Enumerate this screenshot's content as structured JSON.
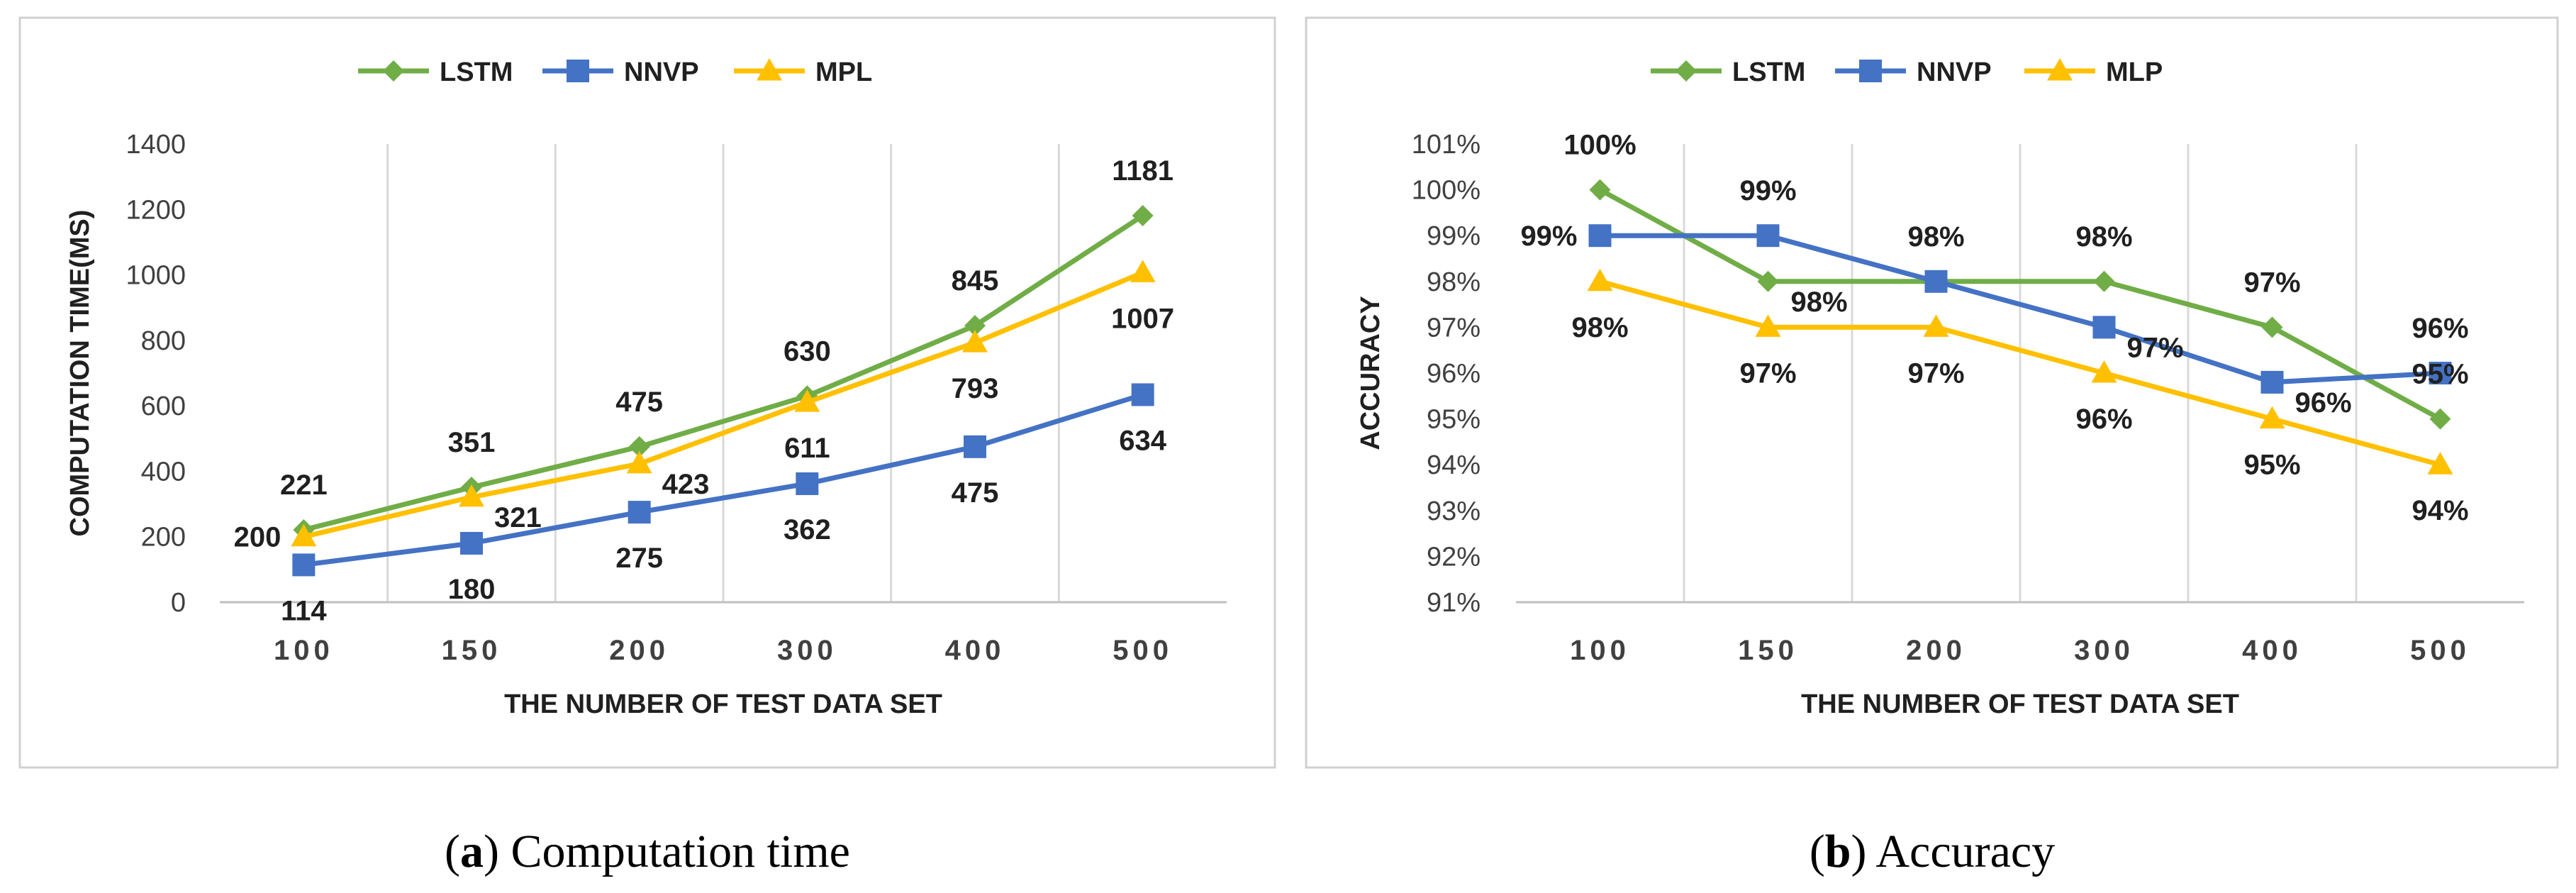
{
  "chart_data": [
    {
      "type": "line",
      "panel_letter": "a",
      "caption": "Computation time",
      "caption_open": "(",
      "caption_close": ") ",
      "title": "",
      "xlabel": "THE NUMBER OF TEST DATA SET",
      "ylabel": "COMPUTATION TIME(MS)",
      "categories": [
        "100",
        "150",
        "200",
        "300",
        "400",
        "500"
      ],
      "ylim": [
        0,
        1400
      ],
      "yticks": [
        0,
        200,
        400,
        600,
        800,
        1000,
        1200,
        1400
      ],
      "ytick_labels": [
        "0",
        "200",
        "400",
        "600",
        "800",
        "1000",
        "1200",
        "1400"
      ],
      "grid": "vertical",
      "legend_position": "top-center",
      "series": [
        {
          "name": "LSTM",
          "color": "#70ad47",
          "marker": "diamond",
          "values": [
            221,
            351,
            475,
            630,
            845,
            1181
          ],
          "labels": [
            "221",
            "351",
            "475",
            "630",
            "845",
            "1181"
          ],
          "label_side": [
            "above",
            "above",
            "above",
            "above",
            "above",
            "above"
          ]
        },
        {
          "name": "NNVP",
          "color": "#4472c4",
          "marker": "square",
          "values": [
            114,
            180,
            275,
            362,
            475,
            634
          ],
          "labels": [
            "114",
            "180",
            "275",
            "362",
            "475",
            "634"
          ],
          "label_side": [
            "below",
            "below",
            "below",
            "below",
            "below",
            "below"
          ]
        },
        {
          "name": "MPL",
          "color": "#ffc000",
          "marker": "triangle",
          "values": [
            200,
            321,
            423,
            611,
            793,
            1007
          ],
          "labels": [
            "200",
            "321",
            "423",
            "611",
            "793",
            "1007"
          ],
          "label_side": [
            "left",
            "right",
            "right",
            "below",
            "below",
            "below"
          ]
        }
      ]
    },
    {
      "type": "line",
      "panel_letter": "b",
      "caption": "Accuracy",
      "caption_open": "(",
      "caption_close": ") ",
      "title": "",
      "xlabel": "THE NUMBER OF TEST DATA SET",
      "ylabel": "ACCURACY",
      "categories": [
        "100",
        "150",
        "200",
        "300",
        "400",
        "500"
      ],
      "ylim": [
        91,
        101
      ],
      "yticks": [
        91,
        92,
        93,
        94,
        95,
        96,
        97,
        98,
        99,
        100,
        101
      ],
      "ytick_labels": [
        "91%",
        "92%",
        "93%",
        "94%",
        "95%",
        "96%",
        "97%",
        "98%",
        "99%",
        "100%",
        "101%"
      ],
      "grid": "vertical",
      "legend_position": "top-center",
      "series": [
        {
          "name": "LSTM",
          "color": "#70ad47",
          "marker": "diamond",
          "values": [
            100,
            98,
            98,
            98,
            97,
            95
          ],
          "labels": [
            "100%",
            "98%",
            "98%",
            "98%",
            "97%",
            "95%"
          ],
          "label_side": [
            "above",
            "right",
            "above",
            "above",
            "above",
            "above"
          ]
        },
        {
          "name": "NNVP",
          "color": "#4472c4",
          "marker": "square",
          "values": [
            99,
            99,
            98,
            97,
            95.8,
            96
          ],
          "labels": [
            "99%",
            "99%",
            "",
            "97%",
            "96%",
            "96%"
          ],
          "label_side": [
            "left",
            "above",
            "above",
            "right",
            "right",
            "above"
          ]
        },
        {
          "name": "MLP",
          "color": "#ffc000",
          "marker": "triangle",
          "values": [
            98,
            97,
            97,
            96,
            95,
            94
          ],
          "labels": [
            "98%",
            "97%",
            "97%",
            "96%",
            "95%",
            "94%"
          ],
          "label_side": [
            "below",
            "below",
            "below",
            "below",
            "below",
            "below"
          ]
        }
      ]
    }
  ]
}
